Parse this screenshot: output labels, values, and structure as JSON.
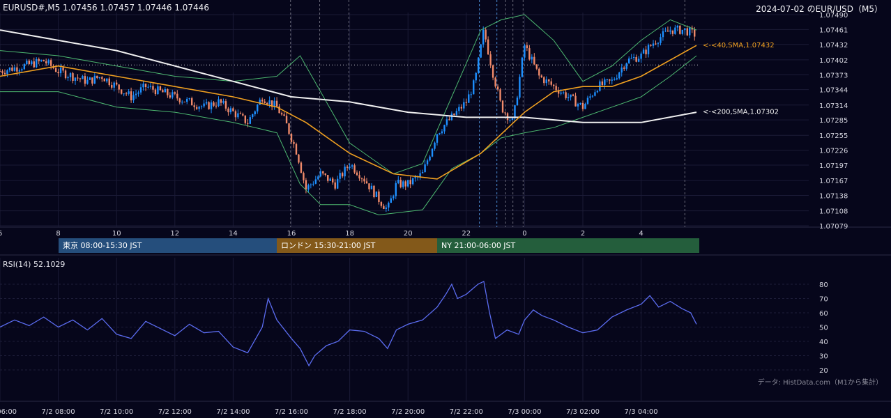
{
  "header": {
    "symbol_line": "EURUSD#,M5 1.07456 1.07457 1.07446 1.07446",
    "title": "2024-07-02 のEUR/USD（M5）"
  },
  "sessions": [
    {
      "label": "東京 08:00-15:30 JST",
      "color": "#254e7c"
    },
    {
      "label": "ロンドン 15:30-21:00 JST",
      "color": "#83591a"
    },
    {
      "label": "NY 21:00-06:00 JST",
      "color": "#245e3c"
    }
  ],
  "rsi": {
    "label": "RSI(14) 52.1029"
  },
  "credit": "データ: HistData.com（M1から集計）",
  "colors": {
    "background": "#06061b",
    "up": "#1e90ff",
    "down": "#f08a6a",
    "sma40": "#f0a020",
    "sma200": "#f0f0f0",
    "bands": "#4db870",
    "rsi_line": "#5b6cf0"
  },
  "chart_data": [
    {
      "type": "candlestick",
      "title": "",
      "y_ticks": [
        "1.07490",
        "1.07461",
        "1.07432",
        "1.07402",
        "1.07373",
        "1.07344",
        "1.07314",
        "1.07285",
        "1.07255",
        "1.07226",
        "1.07197",
        "1.07167",
        "1.07138",
        "1.07108",
        "1.07079"
      ],
      "x_ticks": [
        "6",
        "8",
        "10",
        "12",
        "14",
        "16",
        "18",
        "20",
        "22",
        "0",
        "2",
        "4"
      ],
      "ylim": [
        1.07079,
        1.0749
      ],
      "x_range_hours": [
        6,
        29.9
      ],
      "dotted_level": 1.07392,
      "annotations": [
        {
          "label": "<-<40,SMA,1.07432",
          "value": 1.07432,
          "color": "#f0a020"
        },
        {
          "label": "<-<200,SMA,1.07302",
          "value": 1.07302,
          "color": "#f0f0f0"
        }
      ],
      "close_path": [
        [
          6.0,
          1.0738
        ],
        [
          6.8,
          1.0739
        ],
        [
          7.5,
          1.074
        ],
        [
          8.0,
          1.0738
        ],
        [
          8.5,
          1.0737
        ],
        [
          9.0,
          1.0736
        ],
        [
          9.5,
          1.0737
        ],
        [
          10.0,
          1.0735
        ],
        [
          10.5,
          1.0733
        ],
        [
          11.0,
          1.0735
        ],
        [
          11.5,
          1.0734
        ],
        [
          12.0,
          1.0733
        ],
        [
          12.5,
          1.0732
        ],
        [
          13.0,
          1.0731
        ],
        [
          13.5,
          1.0732
        ],
        [
          14.0,
          1.073
        ],
        [
          14.5,
          1.0728
        ],
        [
          15.0,
          1.0733
        ],
        [
          15.5,
          1.0731
        ],
        [
          15.8,
          1.0728
        ],
        [
          16.2,
          1.0722
        ],
        [
          16.5,
          1.0715
        ],
        [
          17.0,
          1.0718
        ],
        [
          17.5,
          1.0716
        ],
        [
          18.0,
          1.072
        ],
        [
          18.5,
          1.0717
        ],
        [
          19.0,
          1.0713
        ],
        [
          19.3,
          1.0711
        ],
        [
          19.6,
          1.0716
        ],
        [
          20.0,
          1.0716
        ],
        [
          20.5,
          1.0718
        ],
        [
          21.0,
          1.0726
        ],
        [
          21.5,
          1.0729
        ],
        [
          22.0,
          1.0732
        ],
        [
          22.3,
          1.0736
        ],
        [
          22.6,
          1.0746
        ],
        [
          22.9,
          1.0738
        ],
        [
          23.2,
          1.0731
        ],
        [
          23.6,
          1.0728
        ],
        [
          24.0,
          1.0743
        ],
        [
          24.5,
          1.0737
        ],
        [
          25.0,
          1.0735
        ],
        [
          25.5,
          1.0733
        ],
        [
          26.0,
          1.0731
        ],
        [
          26.5,
          1.0735
        ],
        [
          27.0,
          1.0736
        ],
        [
          27.5,
          1.074
        ],
        [
          28.0,
          1.0741
        ],
        [
          28.5,
          1.0744
        ],
        [
          29.0,
          1.0746
        ],
        [
          29.5,
          1.0746
        ],
        [
          29.9,
          1.0745
        ]
      ],
      "series": [
        {
          "name": "40,SMA",
          "points": [
            [
              6,
              1.0737
            ],
            [
              8,
              1.0739
            ],
            [
              10,
              1.0737
            ],
            [
              12,
              1.0735
            ],
            [
              14,
              1.0733
            ],
            [
              15.5,
              1.0731
            ],
            [
              16.5,
              1.0728
            ],
            [
              18,
              1.0722
            ],
            [
              19.5,
              1.0718
            ],
            [
              21,
              1.0717
            ],
            [
              22.5,
              1.0722
            ],
            [
              24,
              1.073
            ],
            [
              25,
              1.0734
            ],
            [
              26,
              1.0735
            ],
            [
              27,
              1.0735
            ],
            [
              28,
              1.0737
            ],
            [
              29.9,
              1.0743
            ]
          ]
        },
        {
          "name": "200,SMA",
          "points": [
            [
              6,
              1.0746
            ],
            [
              8,
              1.0744
            ],
            [
              10,
              1.0742
            ],
            [
              12,
              1.0739
            ],
            [
              14,
              1.0736
            ],
            [
              16,
              1.0733
            ],
            [
              18,
              1.0732
            ],
            [
              20,
              1.073
            ],
            [
              22,
              1.0729
            ],
            [
              24,
              1.0729
            ],
            [
              26,
              1.0728
            ],
            [
              28,
              1.0728
            ],
            [
              29.9,
              1.073
            ]
          ]
        },
        {
          "name": "",
          "points": [
            [
              6,
              1.0742
            ],
            [
              8,
              1.0741
            ],
            [
              10,
              1.0739
            ],
            [
              12,
              1.0737
            ],
            [
              14,
              1.0736
            ],
            [
              15.5,
              1.0737
            ],
            [
              16.3,
              1.0741
            ],
            [
              16.8,
              1.0736
            ],
            [
              18,
              1.0724
            ],
            [
              19.5,
              1.0718
            ],
            [
              20.5,
              1.072
            ],
            [
              21.5,
              1.0733
            ],
            [
              22.5,
              1.0746
            ],
            [
              23.2,
              1.0748
            ],
            [
              24,
              1.0749
            ],
            [
              25,
              1.0744
            ],
            [
              26,
              1.0736
            ],
            [
              27,
              1.0739
            ],
            [
              28,
              1.0744
            ],
            [
              29,
              1.0748
            ],
            [
              29.9,
              1.0746
            ]
          ]
        },
        {
          "name": "",
          "points": [
            [
              6,
              1.0734
            ],
            [
              8,
              1.0734
            ],
            [
              10,
              1.0731
            ],
            [
              12,
              1.073
            ],
            [
              14,
              1.0728
            ],
            [
              15.5,
              1.0726
            ],
            [
              16.3,
              1.0716
            ],
            [
              17,
              1.0712
            ],
            [
              18,
              1.0712
            ],
            [
              19,
              1.071
            ],
            [
              20.5,
              1.0711
            ],
            [
              21.5,
              1.0719
            ],
            [
              22.5,
              1.0722
            ],
            [
              23.2,
              1.0725
            ],
            [
              24,
              1.0726
            ],
            [
              25,
              1.0727
            ],
            [
              26,
              1.0729
            ],
            [
              27,
              1.0731
            ],
            [
              28,
              1.0733
            ],
            [
              29,
              1.0737
            ],
            [
              29.9,
              1.0741
            ]
          ]
        }
      ]
    },
    {
      "type": "line",
      "title": "",
      "y_ticks": [
        "80",
        "70",
        "60",
        "50",
        "40",
        "30",
        "20"
      ],
      "ylim": [
        17,
        83
      ],
      "x_ticks": [
        "7/2 06:00",
        "7/2 08:00",
        "7/2 10:00",
        "7/2 12:00",
        "7/2 14:00",
        "7/2 16:00",
        "7/2 18:00",
        "7/2 20:00",
        "7/2 22:00",
        "7/3 00:00",
        "7/3 02:00",
        "7/3 04:00"
      ],
      "series": [
        {
          "name": "RSI(14)",
          "points": [
            [
              6.0,
              50
            ],
            [
              6.5,
              55
            ],
            [
              7.0,
              51
            ],
            [
              7.5,
              57
            ],
            [
              8.0,
              50
            ],
            [
              8.5,
              55
            ],
            [
              9.0,
              48
            ],
            [
              9.5,
              56
            ],
            [
              10.0,
              45
            ],
            [
              10.5,
              42
            ],
            [
              11.0,
              54
            ],
            [
              11.5,
              49
            ],
            [
              12.0,
              44
            ],
            [
              12.5,
              52
            ],
            [
              13.0,
              46
            ],
            [
              13.5,
              47
            ],
            [
              14.0,
              36
            ],
            [
              14.5,
              32
            ],
            [
              15.0,
              50
            ],
            [
              15.2,
              70
            ],
            [
              15.5,
              55
            ],
            [
              16.0,
              42
            ],
            [
              16.3,
              35
            ],
            [
              16.6,
              23
            ],
            [
              16.8,
              30
            ],
            [
              17.2,
              37
            ],
            [
              17.6,
              40
            ],
            [
              18.0,
              48
            ],
            [
              18.5,
              47
            ],
            [
              19.0,
              42
            ],
            [
              19.3,
              35
            ],
            [
              19.6,
              48
            ],
            [
              20.0,
              52
            ],
            [
              20.5,
              55
            ],
            [
              21.0,
              64
            ],
            [
              21.3,
              73
            ],
            [
              21.5,
              80
            ],
            [
              21.7,
              70
            ],
            [
              22.0,
              73
            ],
            [
              22.4,
              80
            ],
            [
              22.6,
              82
            ],
            [
              22.8,
              60
            ],
            [
              23.0,
              42
            ],
            [
              23.4,
              48
            ],
            [
              23.8,
              45
            ],
            [
              24.0,
              55
            ],
            [
              24.3,
              62
            ],
            [
              24.6,
              58
            ],
            [
              25.0,
              55
            ],
            [
              25.5,
              50
            ],
            [
              26.0,
              46
            ],
            [
              26.5,
              48
            ],
            [
              27.0,
              57
            ],
            [
              27.5,
              62
            ],
            [
              28.0,
              66
            ],
            [
              28.3,
              72
            ],
            [
              28.6,
              64
            ],
            [
              29.0,
              68
            ],
            [
              29.4,
              63
            ],
            [
              29.7,
              60
            ],
            [
              29.9,
              52
            ]
          ]
        }
      ]
    }
  ]
}
